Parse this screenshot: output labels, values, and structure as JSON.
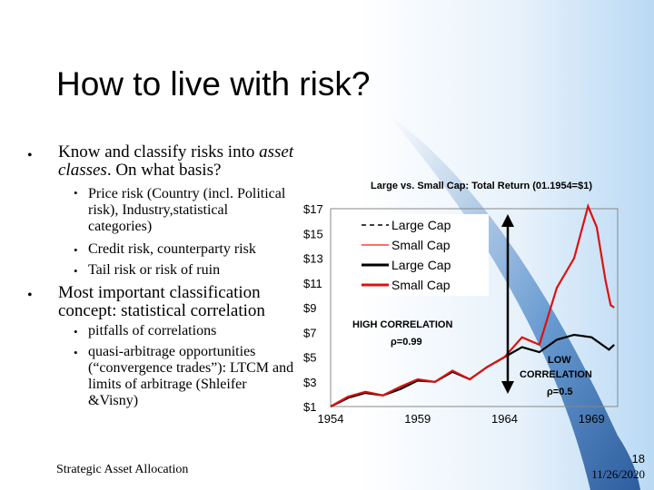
{
  "slide": {
    "title": "How to live with risk?",
    "bullets": [
      {
        "text_plain": "Know and classify risks into",
        "text_italic": "asset classes",
        "text_tail": ". On what basis?"
      },
      {
        "text": "Most important classification concept: statistical correlation"
      }
    ],
    "sub_bullets_1": [
      {
        "text": "Price risk (Country (incl. Political risk), Industry,statistical categories)"
      },
      {
        "text": "Credit risk, counterparty risk"
      },
      {
        "text": "Tail risk or risk of ruin"
      }
    ],
    "sub_bullets_2": [
      {
        "text": "pitfalls of correlations"
      },
      {
        "text": "quasi-arbitrage opportunities (“convergence trades”): LTCM and limits of arbitrage (Shleifer &Visny)"
      }
    ],
    "footer": "Strategic Asset Allocation",
    "page_number": "18",
    "date": "11/26/2020"
  },
  "chart_data": {
    "type": "line",
    "title": "Large vs. Small Cap: Total Return (01.1954=$1)",
    "y_ticks": [
      "$1",
      "$3",
      "$5",
      "$7",
      "$9",
      "$11",
      "$13",
      "$15",
      "$17"
    ],
    "ylim": [
      1,
      17
    ],
    "x_ticks": [
      "1954",
      "1959",
      "1964",
      "1969"
    ],
    "xlim": [
      1954,
      1970.5
    ],
    "legend": [
      "Large Cap",
      "Small Cap",
      "Large Cap",
      "Small Cap"
    ],
    "annotations": {
      "high_label": "HIGH CORRELATION",
      "high_rho": "ρ=0.99",
      "low_label_1": "LOW",
      "low_label_2": "CORRELATION",
      "low_rho": "ρ=0.5"
    },
    "series": [
      {
        "name": "Large Cap (dashed)",
        "color": "#000000",
        "style": "dashed",
        "x": [
          1954,
          1956,
          1958,
          1960,
          1962,
          1964
        ],
        "y": [
          1,
          1.5,
          2,
          2.5,
          3,
          3.5
        ]
      },
      {
        "name": "Small Cap (light red)",
        "color": "#ff3b3b",
        "style": "solid",
        "x": [
          1954,
          1956,
          1958,
          1960,
          1962,
          1964
        ],
        "y": [
          1,
          1.5,
          2,
          2.5,
          3,
          3.5
        ]
      },
      {
        "name": "Large Cap",
        "color": "#000000",
        "style": "solid",
        "x": [
          1954,
          1955,
          1956,
          1957,
          1958,
          1959,
          1960,
          1961,
          1962,
          1963,
          1964,
          1965,
          1966,
          1967,
          1968,
          1969,
          1970,
          1970.3
        ],
        "y": [
          1,
          1.7,
          2.1,
          1.9,
          2.4,
          3.1,
          3.0,
          3.8,
          3.2,
          4.2,
          5.0,
          5.8,
          5.4,
          6.4,
          6.8,
          6.6,
          5.6,
          6.0
        ]
      },
      {
        "name": "Small Cap",
        "color": "#dd1111",
        "style": "solid",
        "x": [
          1954,
          1955,
          1956,
          1957,
          1958,
          1959,
          1960,
          1961,
          1962,
          1963,
          1964,
          1965,
          1966,
          1967,
          1968,
          1968.8,
          1969.3,
          1969.8,
          1970.1,
          1970.3
        ],
        "y": [
          1,
          1.8,
          2.2,
          1.9,
          2.6,
          3.2,
          3.0,
          3.9,
          3.2,
          4.2,
          5.0,
          6.6,
          6.0,
          10.6,
          13.0,
          17.2,
          15.5,
          11.2,
          9.2,
          9.0
        ]
      }
    ],
    "colors": {
      "large": "#000000",
      "small": "#dd1111",
      "small_light": "#ff3b3b",
      "arrow": "#000000",
      "deco_blue": "#2f6fb3"
    }
  }
}
